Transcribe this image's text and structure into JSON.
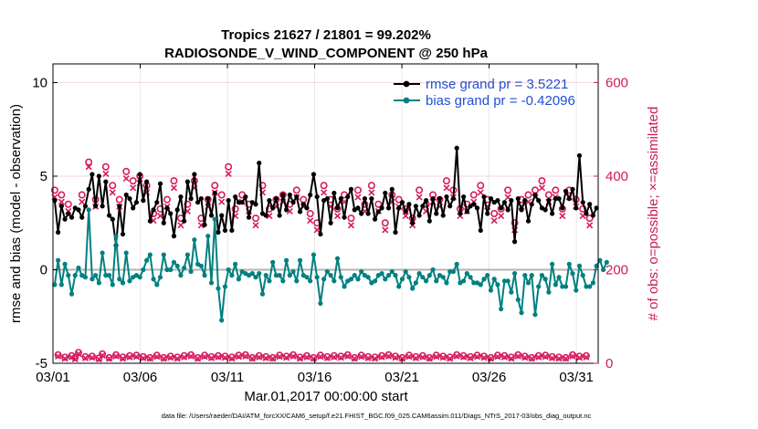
{
  "chart_data": {
    "type": "line",
    "title": "Tropics 21627 / 21801 = 99.202%",
    "subtitle": "RADIOSONDE_V_WIND_COMPONENT @ 250 hPa",
    "xlabel": "Mar.01,2017 00:00:00 start",
    "ylabel": "rmse and bias (model - observation)",
    "y2label": "# of obs: o=possible; ×=assimilated",
    "footnote": "data file: /Users/raeder/DAI/ATM_forcXX/CAM6_setup/f.e21.FHIST_BGC.f09_025.CAM6assim.011/Diags_NTrS_2017-03/obs_diag_output.nc",
    "xlim": [
      0,
      31.25
    ],
    "ylim": [
      -5,
      11
    ],
    "y2lim": [
      0,
      640
    ],
    "xticks": [
      0,
      5,
      10,
      15,
      20,
      25,
      30
    ],
    "xticklabels": [
      "03/01",
      "03/06",
      "03/11",
      "03/16",
      "03/21",
      "03/26",
      "03/31"
    ],
    "yticks": [
      -5,
      0,
      5,
      10
    ],
    "yticklabels": [
      "-5",
      "0",
      "5",
      "10"
    ],
    "y2ticks": [
      0,
      200,
      400,
      600
    ],
    "y2ticklabels": [
      "0",
      "200",
      "400",
      "600"
    ],
    "grid": true,
    "legend": "top-right",
    "colors": {
      "rmse": "#000000",
      "bias": "#008080",
      "obs": "#d81b60",
      "zero": "#b3b3b3",
      "legend_text": "#1f4fd6"
    },
    "series": [
      {
        "name": "rmse grand pr = 3.5221",
        "axis": "left",
        "color": "#000000",
        "values": [
          3.7,
          2.0,
          3.4,
          2.7,
          3.0,
          2.8,
          3.3,
          3.2,
          2.8,
          3.4,
          4.3,
          5.1,
          3.4,
          5.0,
          3.4,
          4.7,
          2.9,
          2.7,
          1.3,
          3.4,
          1.9,
          4.0,
          3.8,
          3.3,
          3.6,
          5.1,
          3.7,
          4.7,
          2.6,
          3.2,
          3.6,
          4.6,
          2.5,
          3.3,
          3.0,
          1.8,
          3.2,
          3.9,
          2.6,
          4.7,
          3.8,
          5.1,
          3.6,
          3.8,
          2.4,
          3.8,
          2.9,
          4.1,
          2.0,
          2.9,
          2.1,
          3.7,
          2.1,
          3.9,
          3.6,
          3.6,
          3.9,
          2.8,
          3.6,
          3.5,
          5.7,
          3.0,
          2.9,
          3.7,
          3.3,
          3.8,
          2.9,
          4.0,
          3.2,
          4.0,
          3.6,
          3.9,
          3.1,
          3.5,
          3.3,
          4.0,
          5.1,
          3.9,
          1.9,
          3.7,
          3.8,
          2.5,
          4.1,
          3.3,
          3.8,
          2.8,
          3.9,
          4.3,
          3.2,
          3.3,
          3.0,
          3.8,
          3.0,
          3.8,
          2.7,
          3.1,
          3.3,
          4.1,
          3.3,
          4.3,
          2.0,
          3.3,
          3.6,
          3.1,
          3.5,
          2.5,
          3.4,
          2.9,
          3.4,
          3.7,
          2.6,
          3.8,
          3.0,
          3.8,
          2.9,
          3.9,
          3.4,
          3.8,
          6.5,
          3.0,
          3.9,
          3.1,
          3.4,
          3.5,
          3.3,
          2.1,
          3.9,
          3.0,
          3.8,
          3.6,
          3.7,
          3.3,
          3.6,
          3.2,
          3.7,
          1.5,
          3.8,
          3.2,
          3.7,
          2.6,
          3.5,
          4.0,
          3.7,
          3.3,
          3.2,
          3.7,
          3.0,
          3.8,
          3.8,
          3.3,
          4.2,
          3.8,
          4.3,
          3.3,
          6.1,
          3.6,
          3.0,
          3.5,
          2.9,
          3.3
        ]
      },
      {
        "name": "bias grand pr = -0.42096",
        "axis": "left",
        "color": "#008080",
        "values": [
          -0.8,
          0.5,
          -0.8,
          0.3,
          -0.3,
          -1.3,
          -0.3,
          0.1,
          -0.3,
          -0.4,
          3.2,
          -0.5,
          -0.3,
          -0.7,
          0.9,
          -0.3,
          -0.3,
          -0.8,
          1.8,
          -0.5,
          -0.7,
          0.9,
          -0.6,
          -0.4,
          -0.3,
          -0.4,
          0.0,
          0.5,
          0.8,
          -0.5,
          -0.8,
          -0.4,
          0.8,
          0.0,
          0.0,
          0.4,
          0.2,
          -0.3,
          0.1,
          0.8,
          -0.1,
          1.6,
          0.3,
          0.2,
          -0.3,
          1.8,
          -0.7,
          2.7,
          -1.0,
          -2.7,
          -0.9,
          0.0,
          -0.3,
          0.3,
          -0.5,
          -0.1,
          -0.2,
          -0.3,
          -0.2,
          -0.4,
          -0.2,
          -1.3,
          -0.3,
          -0.6,
          0.4,
          -0.3,
          -0.3,
          -0.6,
          0.5,
          -0.3,
          -0.1,
          -0.6,
          0.5,
          -0.3,
          -0.4,
          -0.6,
          0.8,
          -0.4,
          -1.8,
          -0.5,
          -0.1,
          -0.3,
          -0.6,
          0.6,
          -0.4,
          -0.9,
          -0.6,
          -0.5,
          -0.3,
          -0.5,
          -0.1,
          -0.3,
          -0.4,
          -0.7,
          -0.6,
          -0.3,
          -0.2,
          -0.5,
          -0.3,
          -0.1,
          -0.3,
          -0.9,
          -0.5,
          -0.1,
          -0.4,
          -1.0,
          -0.7,
          -0.2,
          -0.4,
          -0.6,
          -0.3,
          0.0,
          -0.6,
          -0.3,
          -0.4,
          -0.7,
          -0.1,
          -0.1,
          0.3,
          -0.7,
          -0.6,
          -0.2,
          -0.4,
          -0.7,
          -0.7,
          -0.8,
          -0.5,
          -0.3,
          -1.1,
          -0.5,
          -0.8,
          -2.1,
          -0.6,
          -0.6,
          -1.2,
          -0.2,
          -1.6,
          -2.3,
          -0.3,
          -0.7,
          -0.3,
          -2.4,
          -0.9,
          -0.3,
          -0.5,
          -1.2,
          0.3,
          -0.8,
          -0.4,
          -0.9,
          -0.9,
          0.3,
          -0.2,
          -1.1,
          0.2,
          -0.3,
          -0.9,
          -0.9,
          -0.7,
          0.2,
          0.5,
          0.0,
          0.4
        ]
      },
      {
        "name": "# obs possible",
        "axis": "right",
        "color": "#d81b60",
        "marker": "o",
        "values": [
          370,
          18,
          360,
          13,
          340,
          16,
          12,
          23,
          360,
          14,
          430,
          15,
          350,
          11,
          20,
          420,
          12,
          380,
          18,
          350,
          13,
          410,
          16,
          390,
          17,
          400,
          14,
          380,
          12,
          320,
          17,
          330,
          12,
          350,
          15,
          390,
          13,
          310,
          16,
          340,
          18,
          390,
          12,
          310,
          17,
          350,
          14,
          380,
          16,
          360,
          15,
          420,
          13,
          330,
          17,
          360,
          18,
          340,
          12,
          310,
          16,
          380,
          14,
          330,
          12,
          350,
          17,
          360,
          15,
          340,
          18,
          370,
          13,
          350,
          16,
          320,
          12,
          300,
          17,
          380,
          14,
          350,
          16,
          330,
          15,
          360,
          18,
          310,
          12,
          370,
          17,
          340,
          14,
          380,
          13,
          340,
          16,
          300,
          18,
          360,
          15,
          350,
          12,
          330,
          17,
          310,
          14,
          370,
          16,
          340,
          12,
          360,
          17,
          350,
          15,
          390,
          13,
          370,
          18,
          330,
          16,
          340,
          14,
          360,
          17,
          380,
          15,
          350,
          12,
          320,
          17,
          330,
          16,
          370,
          13,
          300,
          18,
          350,
          15,
          360,
          12,
          370,
          16,
          390,
          17,
          360,
          14,
          370,
          13,
          330,
          12,
          370,
          18,
          350,
          15,
          330,
          16,
          310
        ]
      },
      {
        "name": "# obs assimilated",
        "axis": "right",
        "color": "#d81b60",
        "marker": "x",
        "values": [
          355,
          15,
          345,
          10,
          325,
          13,
          9,
          20,
          345,
          11,
          420,
          12,
          335,
          9,
          17,
          405,
          10,
          365,
          15,
          335,
          10,
          395,
          13,
          375,
          14,
          385,
          11,
          365,
          10,
          305,
          14,
          315,
          10,
          335,
          12,
          375,
          10,
          295,
          13,
          325,
          15,
          375,
          10,
          295,
          14,
          335,
          11,
          365,
          13,
          345,
          12,
          405,
          10,
          315,
          14,
          345,
          15,
          325,
          10,
          295,
          13,
          365,
          11,
          315,
          10,
          335,
          14,
          345,
          12,
          325,
          15,
          355,
          10,
          335,
          13,
          305,
          10,
          285,
          14,
          365,
          11,
          335,
          13,
          315,
          12,
          345,
          15,
          295,
          10,
          355,
          14,
          325,
          11,
          365,
          10,
          325,
          13,
          285,
          15,
          345,
          12,
          335,
          10,
          315,
          14,
          295,
          11,
          355,
          13,
          325,
          10,
          345,
          14,
          335,
          12,
          375,
          10,
          355,
          15,
          315,
          13,
          325,
          11,
          345,
          14,
          365,
          12,
          335,
          10,
          305,
          14,
          315,
          13,
          355,
          10,
          285,
          15,
          335,
          12,
          345,
          10,
          355,
          13,
          375,
          14,
          345,
          11,
          355,
          10,
          315,
          10,
          355,
          15,
          335,
          12,
          315,
          13,
          295
        ]
      }
    ]
  }
}
